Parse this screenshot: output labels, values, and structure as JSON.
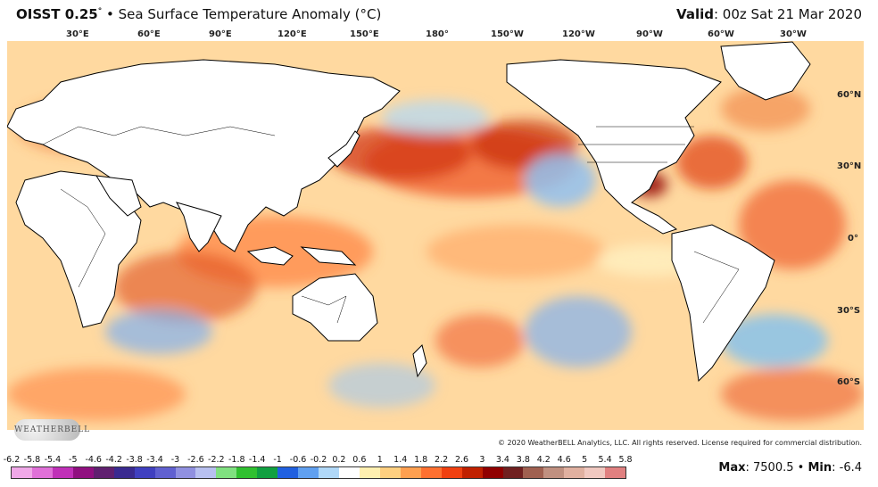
{
  "header": {
    "product": "OISST 0.25",
    "degree_symbol": "°",
    "bullet": "•",
    "description": "Sea Surface Temperature Anomaly (°C)",
    "valid_label": "Valid",
    "valid_value": ": 00z Sat 21 Mar 2020"
  },
  "map": {
    "longitude_labels": [
      "30°E",
      "60°E",
      "90°E",
      "120°E",
      "150°E",
      "180°",
      "150°W",
      "120°W",
      "90°W",
      "60°W",
      "30°W"
    ],
    "latitude_labels": [
      "60°N",
      "30°N",
      "0°",
      "30°S",
      "60°S"
    ]
  },
  "logo_text": "WEATHERBELL",
  "copyright": "© 2020 WeatherBELL Analytics, LLC. All rights reserved. License required for commercial distribution.",
  "legend": {
    "labels": [
      "-6.2",
      "-5.8",
      "-5.4",
      "-5",
      "-4.6",
      "-4.2",
      "-3.8",
      "-3.4",
      "-3",
      "-2.6",
      "-2.2",
      "-1.8",
      "-1.4",
      "-1",
      "-0.6",
      "-0.2",
      "0.2",
      "0.6",
      "1",
      "1.4",
      "1.8",
      "2.2",
      "2.6",
      "3",
      "3.4",
      "3.8",
      "4.2",
      "4.6",
      "5",
      "5.4",
      "5.8"
    ],
    "colors": [
      "#f0a8e8",
      "#e070d8",
      "#c030b8",
      "#901080",
      "#602070",
      "#3a2a90",
      "#4040c0",
      "#6060d0",
      "#9090e0",
      "#b8c0f0",
      "#80e080",
      "#30c030",
      "#10a040",
      "#2060e0",
      "#60a0f0",
      "#b0d8f8",
      "#ffffff",
      "#fff0b0",
      "#ffd080",
      "#ffa050",
      "#ff7030",
      "#f04010",
      "#c02000",
      "#900000",
      "#702020",
      "#a06050",
      "#c09080",
      "#e0b0a0",
      "#f0c8c0",
      "#e08080",
      "#d04040"
    ]
  },
  "stats": {
    "max_label": "Max",
    "max_value": ": 7500.5",
    "bullet": "•",
    "min_label": "Min",
    "min_value": ": -6.4"
  }
}
